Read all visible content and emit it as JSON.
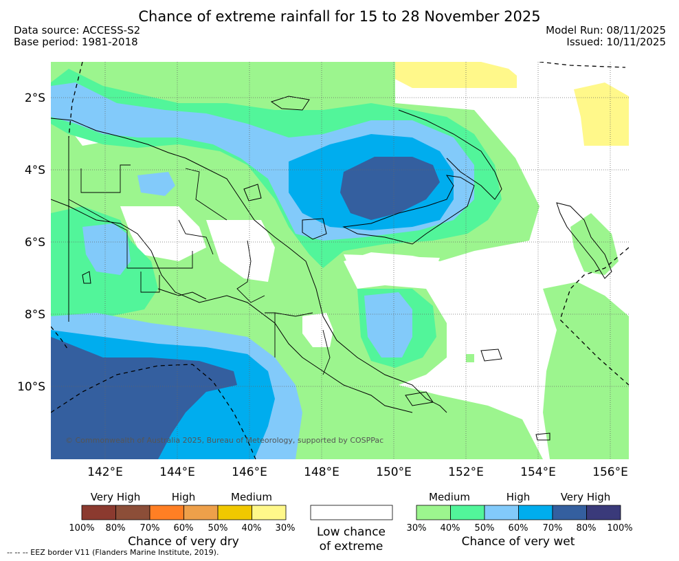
{
  "title": "Chance of extreme rainfall for 15 to 28 November 2025",
  "header": {
    "data_source": "Data source: ACCESS-S2",
    "base_period": "Base period: 1981-2018",
    "model_run": "Model Run: 08/11/2025",
    "issued": "Issued: 10/11/2025"
  },
  "map": {
    "copyright": "© Commonwealth of Australia 2025, Bureau of Meteorology, supported by COSPPac",
    "lat_labels": [
      "2°S",
      "4°S",
      "6°S",
      "8°S",
      "10°S"
    ],
    "lon_labels": [
      "142°E",
      "144°E",
      "146°E",
      "148°E",
      "150°E",
      "152°E",
      "154°E",
      "156°E"
    ]
  },
  "legend": {
    "dry": {
      "categories": [
        "Very High",
        "High",
        "Medium"
      ],
      "percents": [
        "100%",
        "80%",
        "70%",
        "60%",
        "50%",
        "40%",
        "30%"
      ],
      "colors": [
        "#8b3a2f",
        "#8c4e38",
        "#ff7f24",
        "#eea04a",
        "#f0c800",
        "#fff88a"
      ],
      "title": "Chance of very dry"
    },
    "neutral": {
      "title_line1": "Low chance",
      "title_line2": "of extreme",
      "color": "#ffffff"
    },
    "wet": {
      "categories": [
        "Medium",
        "High",
        "Very High"
      ],
      "percents": [
        "30%",
        "40%",
        "50%",
        "60%",
        "70%",
        "80%",
        "100%"
      ],
      "colors": [
        "#9cf58e",
        "#52f59a",
        "#82cafa",
        "#00adee",
        "#345f9f",
        "#3a3a7a"
      ],
      "title": "Chance of very wet"
    }
  },
  "footnote": "-- -- -- EEZ border V11 (Flanders Marine Institute, 2019)."
}
